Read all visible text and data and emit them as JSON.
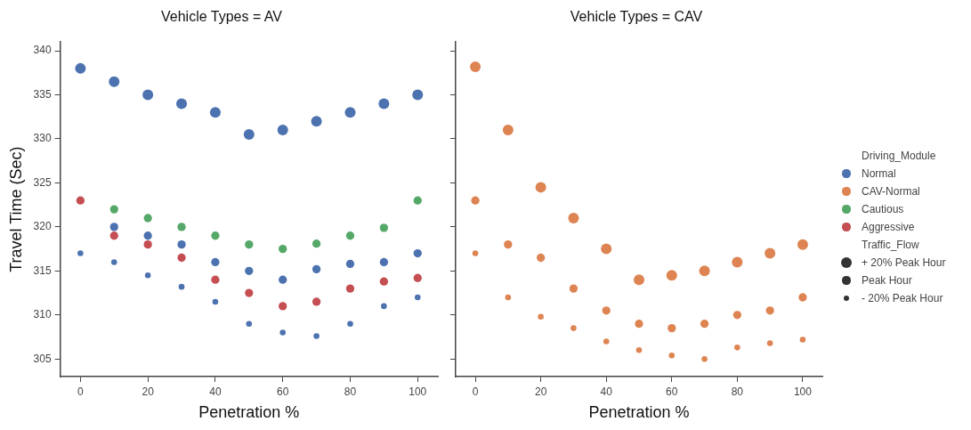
{
  "chart_data": [
    {
      "type": "bubble",
      "title": "Vehicle Types = AV",
      "xlabel": "Penetration %",
      "ylabel": "Travel Time (Sec)",
      "x": [
        0,
        10,
        20,
        30,
        40,
        50,
        60,
        70,
        80,
        90,
        100
      ],
      "xlim": [
        -6,
        106
      ],
      "xticks": [
        0,
        20,
        40,
        60,
        80,
        100
      ],
      "ylim": [
        303,
        341
      ],
      "yticks": [
        305,
        310,
        315,
        320,
        325,
        330,
        335,
        340
      ],
      "grid": false,
      "legend": "right",
      "series": [
        {
          "name": "Normal",
          "color": "#4c72b0",
          "values": [
            338,
            336.5,
            335,
            334,
            333,
            330.5,
            331,
            332,
            333,
            334,
            335
          ],
          "sizes": [
            1,
            1,
            1,
            1,
            1,
            1,
            1,
            1,
            1,
            1,
            1
          ]
        },
        {
          "color": "#4c72b0",
          "values": [
            null,
            320,
            319,
            318,
            316,
            315,
            314,
            315.2,
            315.8,
            316,
            317
          ],
          "sizes": [
            null,
            0.6,
            0.6,
            0.6,
            0.6,
            0.6,
            0.6,
            0.6,
            0.6,
            0.6,
            0.6
          ]
        },
        {
          "color": "#4c72b0",
          "values": [
            317,
            316,
            314.5,
            313.2,
            311.5,
            309,
            308,
            307.6,
            309,
            311,
            312
          ],
          "sizes": [
            0.3,
            0.3,
            0.3,
            0.3,
            0.3,
            0.3,
            0.3,
            0.3,
            0.3,
            0.3,
            0.3
          ]
        },
        {
          "name": "Cautious",
          "color": "#55a868",
          "values": [
            null,
            322,
            321,
            320,
            319,
            318,
            317.5,
            318.1,
            319,
            319.9,
            323
          ],
          "sizes": [
            null,
            0.6,
            0.6,
            0.6,
            0.6,
            0.6,
            0.6,
            0.6,
            0.6,
            0.6,
            0.6
          ]
        },
        {
          "name": "Aggressive",
          "color": "#c44e52",
          "values": [
            323,
            319,
            318,
            316.5,
            314,
            312.5,
            311,
            311.5,
            313,
            313.8,
            314.2
          ],
          "sizes": [
            0.6,
            0.6,
            0.6,
            0.6,
            0.6,
            0.6,
            0.6,
            0.6,
            0.6,
            0.6,
            0.6
          ]
        }
      ]
    },
    {
      "type": "bubble",
      "title": "Vehicle Types = CAV",
      "xlabel": "Penetration %",
      "x": [
        0,
        10,
        20,
        30,
        40,
        50,
        60,
        70,
        80,
        90,
        100
      ],
      "xlim": [
        -6,
        106
      ],
      "xticks": [
        0,
        20,
        40,
        60,
        80,
        100
      ],
      "ylim": [
        303,
        341
      ],
      "yticks": [
        305,
        310,
        315,
        320,
        325,
        330,
        335,
        340
      ],
      "tick_labels": "x",
      "grid": false,
      "legend": "right",
      "legend_title": [
        "Driving_Module",
        "Traffic_Flow"
      ],
      "size_legend": [
        {
          "value": 1,
          "label": "+ 20% Peak Hour"
        },
        {
          "value": 0.6,
          "label": "Peak Hour"
        },
        {
          "value": 0.3,
          "label": "- 20% Peak Hour"
        }
      ],
      "series": [
        {
          "name": "CAV-Normal",
          "color": "#dd8452",
          "values": [
            338.2,
            331,
            324.5,
            321,
            317.5,
            314,
            314.5,
            315,
            316,
            317,
            318
          ],
          "sizes": [
            1,
            1,
            1,
            1,
            1,
            1,
            1,
            1,
            1,
            1,
            1
          ]
        },
        {
          "color": "#dd8452",
          "values": [
            323,
            318,
            316.5,
            313,
            310.5,
            309,
            308.5,
            309,
            310,
            310.5,
            312
          ],
          "sizes": [
            0.6,
            0.6,
            0.6,
            0.6,
            0.6,
            0.6,
            0.6,
            0.6,
            0.6,
            0.6,
            0.6
          ]
        },
        {
          "color": "#dd8452",
          "values": [
            317,
            312,
            309.8,
            308.5,
            307,
            306,
            305.4,
            305,
            306.3,
            306.8,
            307.2
          ],
          "sizes": [
            0.3,
            0.3,
            0.3,
            0.3,
            0.3,
            0.3,
            0.3,
            0.3,
            0.3,
            0.3,
            0.3
          ]
        }
      ]
    }
  ]
}
